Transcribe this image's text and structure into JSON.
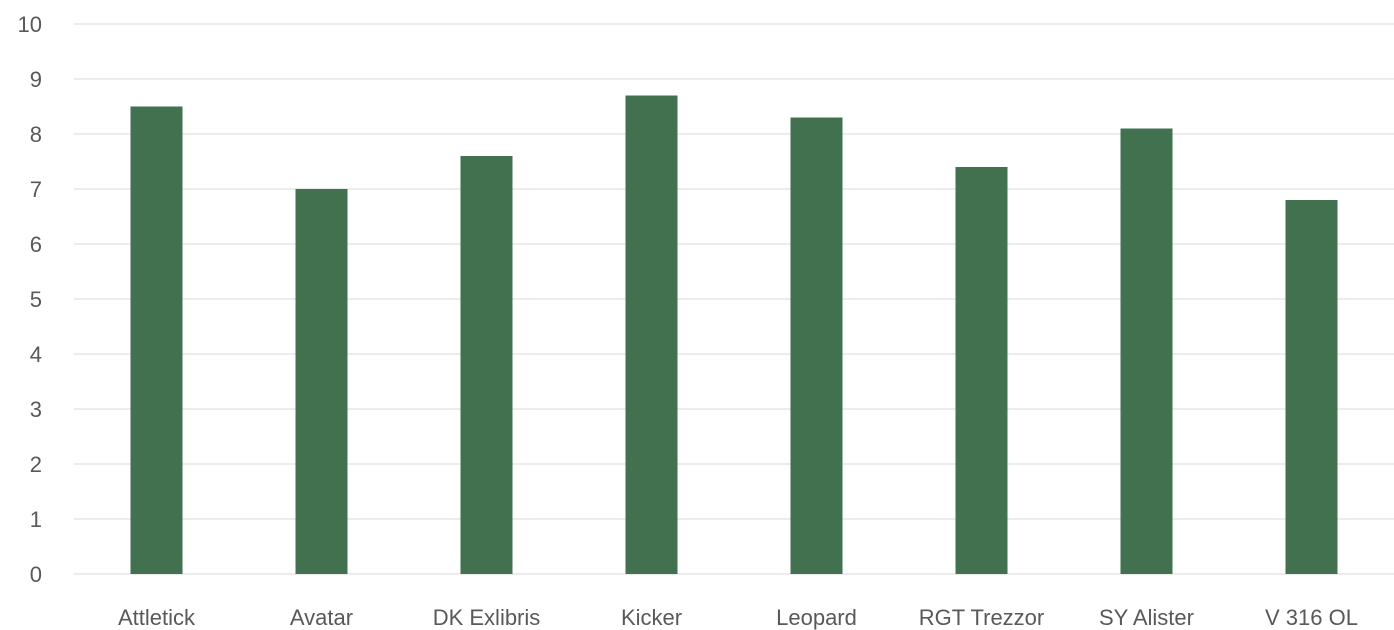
{
  "chart_data": {
    "type": "bar",
    "title": "",
    "xlabel": "",
    "ylabel": "",
    "categories": [
      "Attletick",
      "Avatar",
      "DK Exlibris",
      "Kicker",
      "Leopard",
      "RGT Trezzor",
      "SY Alister",
      "V 316 OL"
    ],
    "values": [
      8.5,
      7.0,
      7.6,
      8.7,
      8.3,
      7.4,
      8.1,
      6.8
    ],
    "ylim": [
      0,
      10
    ],
    "yticks": [
      0,
      1,
      2,
      3,
      4,
      5,
      6,
      7,
      8,
      9,
      10
    ],
    "grid": true,
    "legend": "none",
    "bar_color": "#41714f",
    "gridline_color": "#d9d9d9",
    "label_color": "#595959"
  }
}
